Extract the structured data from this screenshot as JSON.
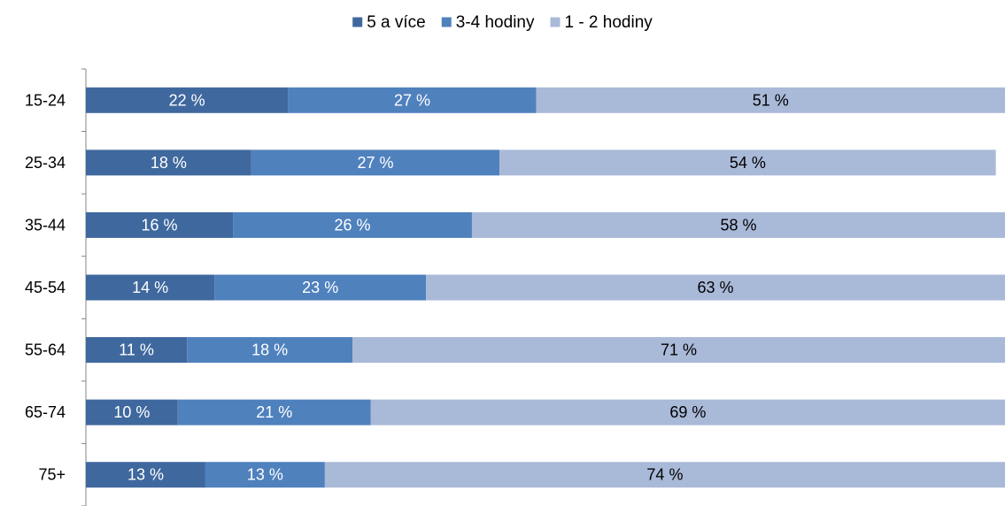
{
  "chart_data": {
    "type": "bar",
    "orientation": "horizontal",
    "stacked": true,
    "categories": [
      "15-24",
      "25-34",
      "35-44",
      "45-54",
      "55-64",
      "65-74",
      "75+"
    ],
    "series": [
      {
        "name": "5 a více",
        "color": "#3f689e",
        "values": [
          22,
          18,
          16,
          14,
          11,
          10,
          13
        ],
        "labels": [
          "22 %",
          "18 %",
          "16 %",
          "14 %",
          "11 %",
          "10 %",
          "13 %"
        ]
      },
      {
        "name": "3-4 hodiny",
        "color": "#4f81bd",
        "values": [
          27,
          27,
          26,
          23,
          18,
          21,
          13
        ],
        "labels": [
          "27 %",
          "27 %",
          "26 %",
          "23 %",
          "18 %",
          "21 %",
          "13 %"
        ]
      },
      {
        "name": "1 - 2 hodiny",
        "color": "#a9b9d8",
        "values": [
          51,
          54,
          58,
          63,
          71,
          69,
          74
        ],
        "labels": [
          "51 %",
          "54 %",
          "58 %",
          "63 %",
          "71 %",
          "69 %",
          "74 %"
        ]
      }
    ],
    "xlim": [
      0,
      100
    ],
    "legend_position": "top-center",
    "grid": false,
    "title": "",
    "xlabel": "",
    "ylabel": ""
  }
}
